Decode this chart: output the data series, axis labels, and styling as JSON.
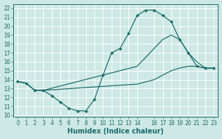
{
  "xlabel": "Humidex (Indice chaleur)",
  "bg_color": "#cde8e5",
  "grid_color": "#ffffff",
  "line_color": "#1a6b6b",
  "xlim": [
    -0.5,
    23.5
  ],
  "ylim": [
    9.8,
    22.5
  ],
  "xticks": [
    0,
    1,
    2,
    3,
    4,
    5,
    6,
    7,
    8,
    9,
    10,
    11,
    12,
    13,
    14,
    16,
    17,
    18,
    19,
    20,
    21,
    22,
    23
  ],
  "yticks": [
    10,
    11,
    12,
    13,
    14,
    15,
    16,
    17,
    18,
    19,
    20,
    21,
    22
  ],
  "line1_x": [
    0,
    1,
    2,
    3,
    4,
    5,
    6,
    7,
    8,
    9,
    10,
    11,
    12,
    13,
    14,
    15,
    16,
    17,
    18,
    19,
    20,
    21,
    22,
    23
  ],
  "line1_y": [
    13.8,
    13.6,
    12.8,
    12.8,
    12.2,
    11.5,
    10.8,
    10.5,
    10.5,
    11.8,
    14.5,
    17.0,
    17.5,
    19.2,
    21.2,
    21.8,
    21.8,
    21.2,
    20.5,
    18.5,
    17.0,
    15.5,
    15.3,
    15.3
  ],
  "line2_x": [
    0,
    1,
    2,
    3,
    14,
    16,
    17,
    18,
    19,
    20,
    21,
    22,
    23
  ],
  "line2_y": [
    13.8,
    13.6,
    12.8,
    12.8,
    15.5,
    17.5,
    18.5,
    19.0,
    18.5,
    17.0,
    16.0,
    15.3,
    15.3
  ],
  "line3_x": [
    0,
    1,
    2,
    3,
    14,
    16,
    17,
    18,
    19,
    20,
    21,
    22,
    23
  ],
  "line3_y": [
    13.8,
    13.6,
    12.8,
    12.8,
    13.5,
    14.0,
    14.5,
    15.0,
    15.3,
    15.5,
    15.5,
    15.3,
    15.3
  ],
  "font_size": 7,
  "marker_size": 2.2,
  "lw": 0.9
}
